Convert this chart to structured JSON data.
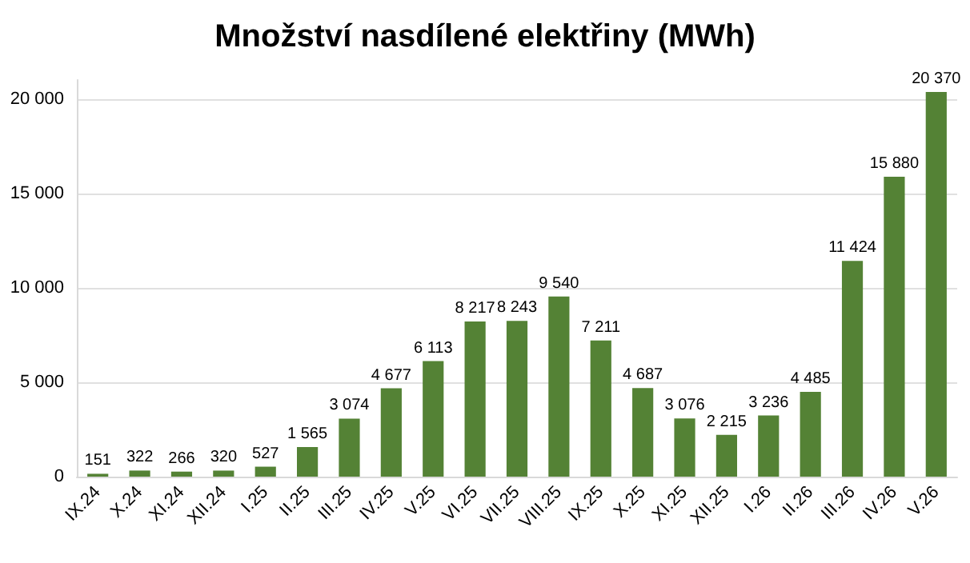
{
  "chart_data": {
    "type": "bar",
    "title": "Množství nasdílené elektřiny (MWh)",
    "categories": [
      "IX.24",
      "X.24",
      "XI.24",
      "XII.24",
      "I.25",
      "II.25",
      "III.25",
      "IV.25",
      "V.25",
      "VI.25",
      "VII.25",
      "VIII.25",
      "IX.25",
      "X.25",
      "XI.25",
      "XII.25",
      "I.26",
      "II.26",
      "III.26",
      "IV.26",
      "V.26"
    ],
    "values": [
      151,
      322,
      266,
      320,
      527,
      1565,
      3074,
      4677,
      6113,
      8217,
      8243,
      9540,
      7211,
      4687,
      3076,
      2215,
      3236,
      4485,
      11424,
      15880,
      20370
    ],
    "value_labels": [
      "151",
      "322",
      "266",
      "320",
      "527",
      "1 565",
      "3 074",
      "4 677",
      "6 113",
      "8 217",
      "8 243",
      "9 540",
      "7 211",
      "4 687",
      "3 076",
      "2 215",
      "3 236",
      "4 485",
      "11 424",
      "15 880",
      "20 370"
    ],
    "color": "#548235",
    "ylim": [
      0,
      21000
    ],
    "yticks": [
      0,
      {
        "value": 5000,
        "label": "5 000"
      },
      {
        "value": 10000,
        "label": "10 000"
      },
      {
        "value": 15000,
        "label": "15 000"
      },
      {
        "value": 20000,
        "label": "20 000"
      }
    ],
    "grid": "y"
  }
}
